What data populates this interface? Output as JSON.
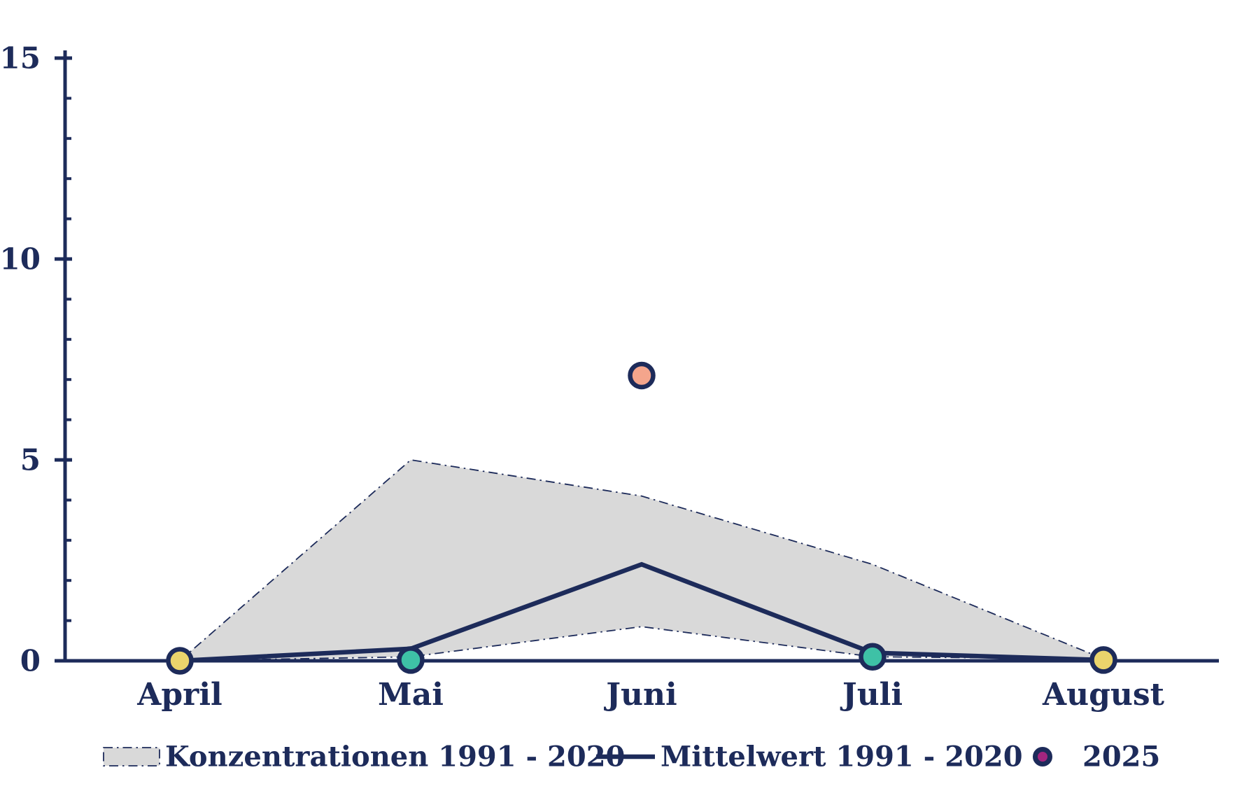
{
  "chart_data": {
    "type": "line",
    "title": "",
    "xlabel": "",
    "ylabel": "",
    "categories": [
      "April",
      "Mai",
      "Juni",
      "Juli",
      "August"
    ],
    "ylim": [
      0,
      15
    ],
    "y_major_ticks": [
      0,
      5,
      10,
      15
    ],
    "y_minor_step": 1,
    "grid": false,
    "series": [
      {
        "name": "Konzentrationen 1991 - 2020",
        "type": "band",
        "upper": [
          0,
          5.0,
          4.1,
          2.4,
          0.05
        ],
        "lower": [
          0,
          0.1,
          0.85,
          0.1,
          0.05
        ]
      },
      {
        "name": "Mittelwert 1991 - 2020",
        "type": "line",
        "values": [
          0,
          0.3,
          2.4,
          0.2,
          0.02
        ]
      },
      {
        "name": "2025",
        "type": "scatter",
        "values": [
          0,
          0.02,
          7.1,
          0.1,
          0.02
        ],
        "point_colors": [
          "#ead46c",
          "#3ec1a6",
          "#f4a58c",
          "#3ec1a6",
          "#ead46c"
        ]
      }
    ],
    "legend": {
      "position": "bottom",
      "items": [
        {
          "label": "Konzentrationen 1991 - 2020",
          "marker": "band-swatch"
        },
        {
          "label": "Mittelwert 1991 - 2020",
          "marker": "line"
        },
        {
          "label": "2025",
          "marker": "dot",
          "dot_color": "#a3257f"
        }
      ]
    },
    "colors": {
      "axis_and_text": "#1d2b5a",
      "band_fill": "#d9d9d9",
      "band_border": "#1d2b5a",
      "mean_line": "#1d2b5a",
      "point_yellow": "#ead46c",
      "point_teal": "#3ec1a6",
      "point_salmon": "#f4a58c",
      "legend_dot_magenta": "#a3257f"
    }
  }
}
